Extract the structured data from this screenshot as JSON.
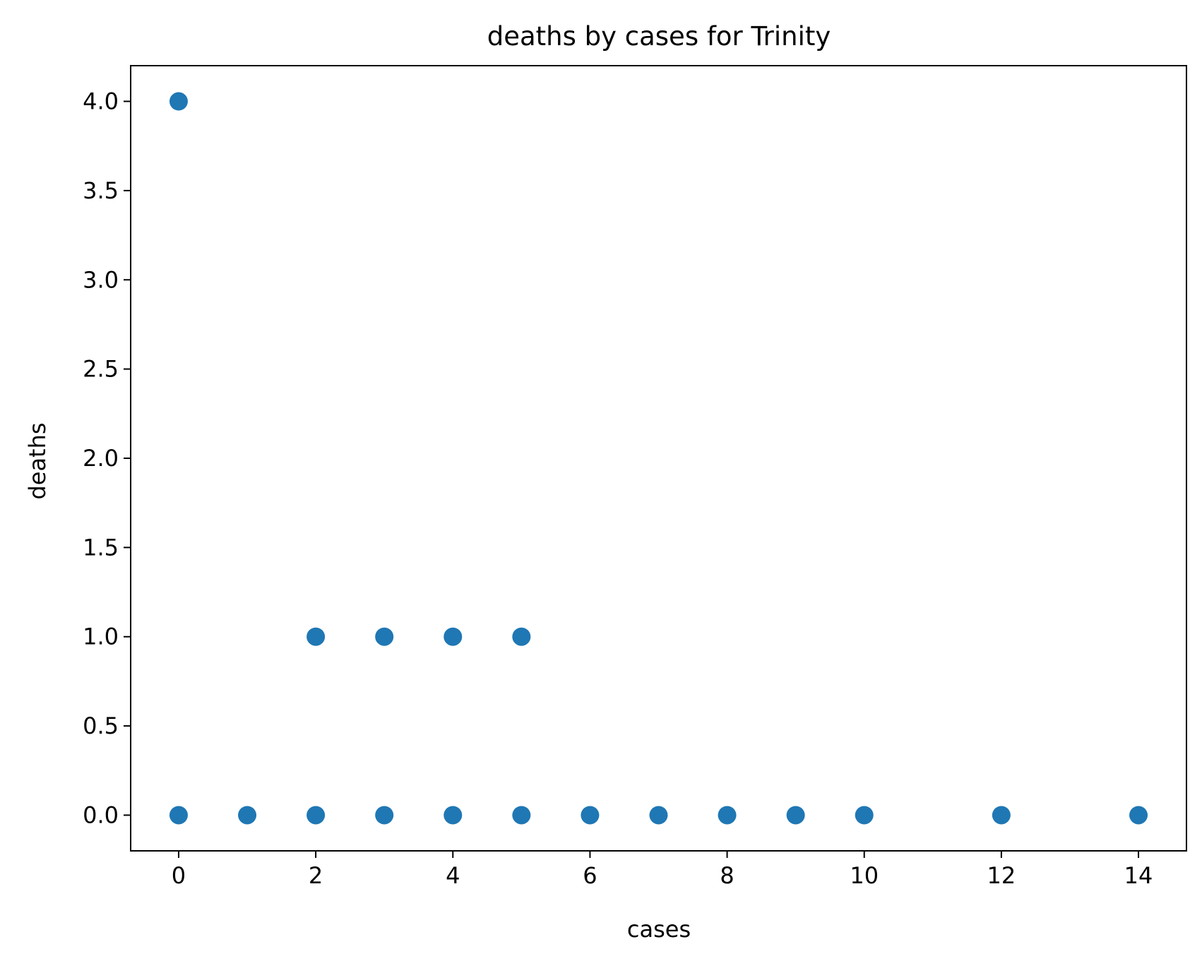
{
  "chart_data": {
    "type": "scatter",
    "title": "deaths by cases for Trinity",
    "xlabel": "cases",
    "ylabel": "deaths",
    "xlim": [
      -0.7,
      14.7
    ],
    "ylim": [
      -0.2,
      4.2
    ],
    "xticks": [
      0,
      2,
      4,
      6,
      8,
      10,
      12,
      14
    ],
    "xtick_labels": [
      "0",
      "2",
      "4",
      "6",
      "8",
      "10",
      "12",
      "14"
    ],
    "yticks": [
      0.0,
      0.5,
      1.0,
      1.5,
      2.0,
      2.5,
      3.0,
      3.5,
      4.0
    ],
    "ytick_labels": [
      "0.0",
      "0.5",
      "1.0",
      "1.5",
      "2.0",
      "2.5",
      "3.0",
      "3.5",
      "4.0"
    ],
    "grid": false,
    "marker_color": "#1f77b4",
    "points": [
      {
        "x": 0,
        "y": 4
      },
      {
        "x": 0,
        "y": 0
      },
      {
        "x": 1,
        "y": 0
      },
      {
        "x": 2,
        "y": 1
      },
      {
        "x": 2,
        "y": 0
      },
      {
        "x": 3,
        "y": 1
      },
      {
        "x": 3,
        "y": 0
      },
      {
        "x": 4,
        "y": 1
      },
      {
        "x": 4,
        "y": 0
      },
      {
        "x": 5,
        "y": 1
      },
      {
        "x": 5,
        "y": 0
      },
      {
        "x": 6,
        "y": 0
      },
      {
        "x": 7,
        "y": 0
      },
      {
        "x": 8,
        "y": 0
      },
      {
        "x": 9,
        "y": 0
      },
      {
        "x": 10,
        "y": 0
      },
      {
        "x": 12,
        "y": 0
      },
      {
        "x": 14,
        "y": 0
      }
    ]
  }
}
